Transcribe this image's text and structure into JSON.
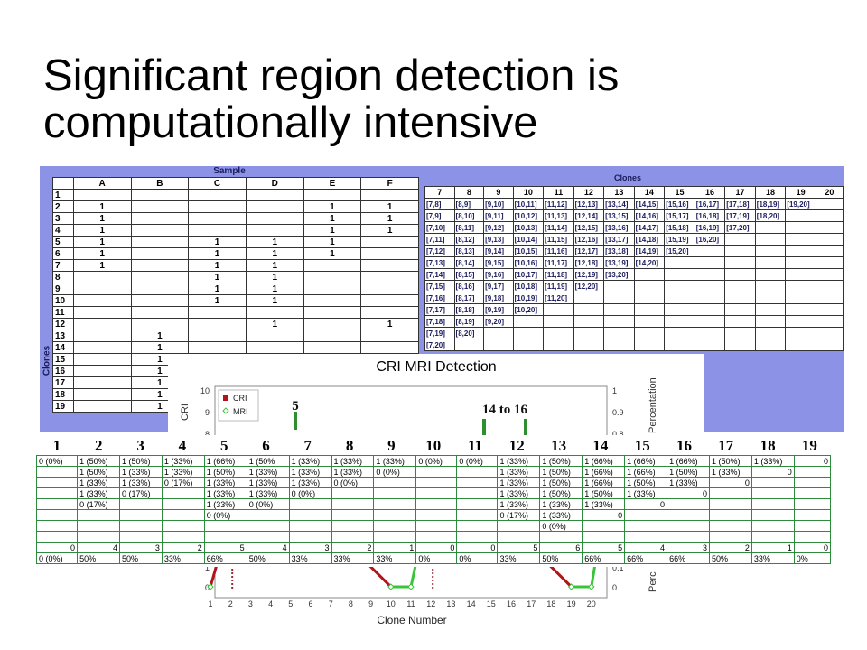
{
  "slide": {
    "title_line1": "Significant region detection is",
    "title_line2": "computationally intensive"
  },
  "sample_table": {
    "heading": "Sample",
    "row_axis_label": "Clones",
    "columns": [
      "A",
      "B",
      "C",
      "D",
      "E",
      "F"
    ],
    "rows": [
      {
        "n": "1",
        "cells": [
          "",
          "",
          "",
          "",
          "",
          ""
        ]
      },
      {
        "n": "2",
        "cells": [
          "1",
          "",
          "",
          "",
          "1",
          "1"
        ]
      },
      {
        "n": "3",
        "cells": [
          "1",
          "",
          "",
          "",
          "1",
          "1"
        ]
      },
      {
        "n": "4",
        "cells": [
          "1",
          "",
          "",
          "",
          "1",
          "1"
        ]
      },
      {
        "n": "5",
        "cells": [
          "1",
          "",
          "1",
          "1",
          "1",
          ""
        ]
      },
      {
        "n": "6",
        "cells": [
          "1",
          "",
          "1",
          "1",
          "1",
          ""
        ]
      },
      {
        "n": "7",
        "cells": [
          "1",
          "",
          "1",
          "1",
          "",
          ""
        ]
      },
      {
        "n": "8",
        "cells": [
          "",
          "",
          "1",
          "1",
          "",
          ""
        ]
      },
      {
        "n": "9",
        "cells": [
          "",
          "",
          "1",
          "1",
          "",
          ""
        ]
      },
      {
        "n": "10",
        "cells": [
          "",
          "",
          "1",
          "1",
          "",
          ""
        ]
      },
      {
        "n": "11",
        "cells": [
          "",
          "",
          "",
          "",
          "",
          ""
        ]
      },
      {
        "n": "12",
        "cells": [
          "",
          "",
          "",
          "1",
          "",
          "1"
        ]
      },
      {
        "n": "13",
        "cells": [
          "",
          "1",
          "",
          "",
          "",
          ""
        ]
      },
      {
        "n": "14",
        "cells": [
          "",
          "1",
          "",
          "",
          "",
          ""
        ]
      },
      {
        "n": "15",
        "cells": [
          "",
          "1",
          "",
          "",
          "",
          ""
        ]
      },
      {
        "n": "16",
        "cells": [
          "",
          "1",
          "",
          "",
          "",
          ""
        ]
      },
      {
        "n": "17",
        "cells": [
          "",
          "1",
          "",
          "",
          "",
          ""
        ]
      },
      {
        "n": "18",
        "cells": [
          "",
          "1",
          "",
          "",
          "",
          ""
        ]
      },
      {
        "n": "19",
        "cells": [
          "",
          "1",
          "",
          "",
          "",
          ""
        ]
      }
    ]
  },
  "clones_table": {
    "heading": "Clones",
    "columns": [
      "7",
      "8",
      "9",
      "10",
      "11",
      "12",
      "13",
      "14",
      "15",
      "16",
      "17",
      "18",
      "19",
      "20"
    ],
    "rows": [
      [
        "[7,8]",
        "[8,9]",
        "[9,10]",
        "[10,11]",
        "[11,12]",
        "[12,13]",
        "[13,14]",
        "[14,15]",
        "[15,16]",
        "[16,17]",
        "[17,18]",
        "[18,19]",
        "[19,20]",
        ""
      ],
      [
        "[7,9]",
        "[8,10]",
        "[9,11]",
        "[10,12]",
        "[11,13]",
        "[12,14]",
        "[13,15]",
        "[14,16]",
        "[15,17]",
        "[16,18]",
        "[17,19]",
        "[18,20]",
        "",
        ""
      ],
      [
        "[7,10]",
        "[8,11]",
        "[9,12]",
        "[10,13]",
        "[11,14]",
        "[12,15]",
        "[13,16]",
        "[14,17]",
        "[15,18]",
        "[16,19]",
        "[17,20]",
        "",
        "",
        ""
      ],
      [
        "[7,11]",
        "[8,12]",
        "[9,13]",
        "[10,14]",
        "[11,15]",
        "[12,16]",
        "[13,17]",
        "[14,18]",
        "[15,19]",
        "[16,20]",
        "",
        "",
        "",
        ""
      ],
      [
        "[7,12]",
        "[8,13]",
        "[9,14]",
        "[10,15]",
        "[11,16]",
        "[12,17]",
        "[13,18]",
        "[14,19]",
        "[15,20]",
        "",
        "",
        "",
        "",
        ""
      ],
      [
        "[7,13]",
        "[8,14]",
        "[9,15]",
        "[10,16]",
        "[11,17]",
        "[12,18]",
        "[13,19]",
        "[14,20]",
        "",
        "",
        "",
        "",
        "",
        ""
      ],
      [
        "[7,14]",
        "[8,15]",
        "[9,16]",
        "[10,17]",
        "[11,18]",
        "[12,19]",
        "[13,20]",
        "",
        "",
        "",
        "",
        "",
        "",
        ""
      ],
      [
        "[7,15]",
        "[8,16]",
        "[9,17]",
        "[10,18]",
        "[11,19]",
        "[12,20]",
        "",
        "",
        "",
        "",
        "",
        "",
        "",
        ""
      ],
      [
        "[7,16]",
        "[8,17]",
        "[9,18]",
        "[10,19]",
        "[11,20]",
        "",
        "",
        "",
        "",
        "",
        "",
        "",
        "",
        ""
      ],
      [
        "[7,17]",
        "[8,18]",
        "[9,19]",
        "[10,20]",
        "",
        "",
        "",
        "",
        "",
        "",
        "",
        "",
        "",
        ""
      ],
      [
        "[7,18]",
        "[8,19]",
        "[9,20]",
        "",
        "",
        "",
        "",
        "",
        "",
        "",
        "",
        "",
        "",
        ""
      ],
      [
        "[7,19]",
        "[8,20]",
        "",
        "",
        "",
        "",
        "",
        "",
        "",
        "",
        "",
        "",
        "",
        ""
      ],
      [
        "[7,20]",
        "",
        "",
        "",
        "",
        "",
        "",
        "",
        "",
        "",
        "",
        "",
        "",
        ""
      ]
    ]
  },
  "chart_data": {
    "type": "line",
    "title": "CRI MRI Detection",
    "xlabel": "Clone Number",
    "ylabel_left": "CRI",
    "ylabel_right": "Percentation",
    "legend": [
      "CRI",
      "MRI"
    ],
    "annotations": [
      "5",
      "14 to 16"
    ],
    "left_y_ticks": [
      "10",
      "9",
      "8"
    ],
    "right_y_ticks": [
      "1",
      "0.9",
      "0.8"
    ],
    "bottom_left_ticks": [
      "1",
      "0"
    ],
    "bottom_right_ticks": [
      "0.1",
      "0"
    ],
    "x_ticks": [
      "1",
      "2",
      "3",
      "4",
      "5",
      "6",
      "7",
      "8",
      "9",
      "10",
      "11",
      "12",
      "13",
      "14",
      "15",
      "16",
      "17",
      "18",
      "19",
      "20"
    ],
    "colors": {
      "cri": "#b0151b",
      "mri": "#39c43a",
      "marker": "#2f8f2f"
    }
  },
  "bottom_table": {
    "headers": [
      "1",
      "2",
      "3",
      "4",
      "5",
      "6",
      "7",
      "8",
      "9",
      "10",
      "11",
      "12",
      "13",
      "14",
      "15",
      "16",
      "17",
      "18",
      "19"
    ],
    "rows": [
      [
        "0 (0%)",
        "1 (50%)",
        "1 (50%)",
        "1 (33%)",
        "1 (66%)",
        "1 (50%",
        "1 (33%)",
        "1 (33%)",
        "1 (33%)",
        "0 (0%)",
        "0 (0%)",
        "1 (33%)",
        "1 (50%)",
        "1 (66%)",
        "1 (66%)",
        "1 (66%)",
        "1 (50%)",
        "1 (33%)",
        "0"
      ],
      [
        "",
        "1 (50%)",
        "1 (33%)",
        "1 (33%)",
        "1 (50%)",
        "1 (33%)",
        "1 (33%)",
        "1 (33%)",
        "0 (0%)",
        "",
        "",
        "1 (33%)",
        "1 (50%)",
        "1 (66%)",
        "1 (66%)",
        "1 (50%)",
        "1 (33%)",
        "0",
        ""
      ],
      [
        "",
        "1 (33%)",
        "1 (33%)",
        "0 (17%)",
        "1 (33%)",
        "1 (33%)",
        "1 (33%)",
        "0 (0%)",
        "",
        "",
        "",
        "1 (33%)",
        "1 (50%)",
        "1 (66%)",
        "1 (50%)",
        "1 (33%)",
        "0",
        "",
        ""
      ],
      [
        "",
        "1 (33%)",
        "0 (17%)",
        "",
        "1 (33%)",
        "1 (33%)",
        "0 (0%)",
        "",
        "",
        "",
        "",
        "1 (33%)",
        "1 (50%)",
        "1 (50%)",
        "1 (33%)",
        "0",
        "",
        "",
        ""
      ],
      [
        "",
        "0 (17%)",
        "",
        "",
        "1 (33%)",
        "0 (0%)",
        "",
        "",
        "",
        "",
        "",
        "1 (33%)",
        "1 (33%)",
        "1 (33%)",
        "0",
        "",
        "",
        "",
        ""
      ],
      [
        "",
        "",
        "",
        "",
        "0 (0%)",
        "",
        "",
        "",
        "",
        "",
        "",
        "0 (17%)",
        "1 (33%)",
        "0",
        "",
        "",
        "",
        "",
        ""
      ],
      [
        "",
        "",
        "",
        "",
        "",
        "",
        "",
        "",
        "",
        "",
        "",
        "",
        "0 (0%)",
        "",
        "",
        "",
        "",
        "",
        ""
      ],
      [
        "",
        "",
        "",
        "",
        "",
        "",
        "",
        "",
        "",
        "",
        "",
        "",
        "",
        "",
        "",
        "",
        "",
        "",
        ""
      ],
      [
        "0",
        "4",
        "3",
        "2",
        "5",
        "4",
        "3",
        "2",
        "1",
        "0",
        "0",
        "5",
        "6",
        "5",
        "4",
        "3",
        "2",
        "1",
        "0"
      ],
      [
        "0 (0%)",
        "50%",
        "50%",
        "33%",
        "66%",
        "50%",
        "33%",
        "33%",
        "33%",
        "0%",
        "0%",
        "33%",
        "50%",
        "66%",
        "66%",
        "66%",
        "50%",
        "33%",
        "0%"
      ]
    ]
  }
}
